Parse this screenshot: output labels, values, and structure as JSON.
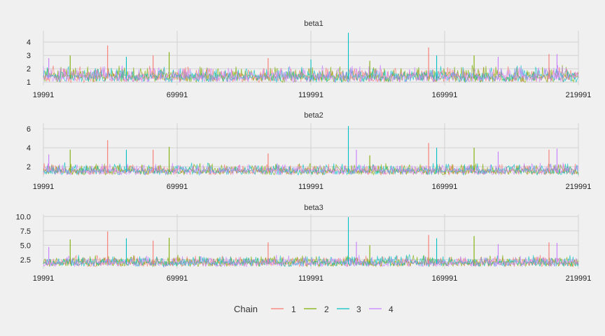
{
  "chart_data": {
    "type": "line",
    "x_range": [
      19991,
      219991
    ],
    "x_ticks": [
      19991,
      69991,
      119991,
      169991,
      219991
    ],
    "x_tick_labels": [
      "19991",
      "69991",
      "119991",
      "169991",
      "219991"
    ],
    "legend": {
      "title": "Chain",
      "placement": "bottom",
      "entries": [
        "1",
        "2",
        "3",
        "4"
      ]
    },
    "series_colors": {
      "1": "#f8766d",
      "2": "#7cae00",
      "3": "#00bfc4",
      "4": "#c77cff"
    },
    "grid": true,
    "panels": [
      {
        "title": "beta1",
        "ylim": [
          0.75,
          4.85
        ],
        "y_ticks": [
          1,
          2,
          3,
          4
        ],
        "y_tick_labels": [
          "1",
          "2",
          "3",
          "4"
        ],
        "baseline": 1.25,
        "peaks": [
          {
            "chain": "1",
            "x": 44000,
            "y": 3.75
          },
          {
            "chain": "2",
            "x": 30000,
            "y": 3.0
          },
          {
            "chain": "2",
            "x": 67000,
            "y": 3.25
          },
          {
            "chain": "1",
            "x": 61000,
            "y": 3.0
          },
          {
            "chain": "3",
            "x": 134000,
            "y": 4.7
          },
          {
            "chain": "1",
            "x": 164000,
            "y": 3.6
          },
          {
            "chain": "3",
            "x": 167000,
            "y": 3.0
          },
          {
            "chain": "2",
            "x": 181000,
            "y": 3.0
          },
          {
            "chain": "1",
            "x": 209000,
            "y": 3.1
          },
          {
            "chain": "4",
            "x": 212000,
            "y": 3.1
          },
          {
            "chain": "4",
            "x": 22000,
            "y": 2.8
          },
          {
            "chain": "3",
            "x": 51000,
            "y": 2.9
          },
          {
            "chain": "1",
            "x": 104000,
            "y": 2.8
          },
          {
            "chain": "2",
            "x": 142000,
            "y": 2.6
          },
          {
            "chain": "4",
            "x": 190000,
            "y": 2.9
          },
          {
            "chain": "3",
            "x": 120000,
            "y": 2.7
          }
        ]
      },
      {
        "title": "beta2",
        "ylim": [
          0.9,
          6.6
        ],
        "y_ticks": [
          2,
          4,
          6
        ],
        "y_tick_labels": [
          "2",
          "4",
          "6"
        ],
        "baseline": 1.4,
        "peaks": [
          {
            "chain": "1",
            "x": 44000,
            "y": 4.8
          },
          {
            "chain": "2",
            "x": 30000,
            "y": 3.8
          },
          {
            "chain": "2",
            "x": 67000,
            "y": 4.1
          },
          {
            "chain": "1",
            "x": 61000,
            "y": 3.8
          },
          {
            "chain": "3",
            "x": 134000,
            "y": 6.3
          },
          {
            "chain": "1",
            "x": 164000,
            "y": 4.5
          },
          {
            "chain": "3",
            "x": 167000,
            "y": 4.0
          },
          {
            "chain": "2",
            "x": 181000,
            "y": 4.0
          },
          {
            "chain": "1",
            "x": 209000,
            "y": 3.8
          },
          {
            "chain": "4",
            "x": 212000,
            "y": 3.9
          },
          {
            "chain": "4",
            "x": 22000,
            "y": 3.3
          },
          {
            "chain": "3",
            "x": 51000,
            "y": 3.8
          },
          {
            "chain": "1",
            "x": 104000,
            "y": 3.4
          },
          {
            "chain": "4",
            "x": 137000,
            "y": 3.8
          },
          {
            "chain": "2",
            "x": 142000,
            "y": 3.2
          },
          {
            "chain": "4",
            "x": 190000,
            "y": 3.6
          }
        ]
      },
      {
        "title": "beta3",
        "ylim": [
          0.9,
          10.4
        ],
        "y_ticks": [
          2.5,
          5.0,
          7.5,
          10.0
        ],
        "y_tick_labels": [
          "2.5",
          "5.0",
          "7.5",
          "10.0"
        ],
        "baseline": 1.7,
        "peaks": [
          {
            "chain": "1",
            "x": 44000,
            "y": 7.4
          },
          {
            "chain": "2",
            "x": 30000,
            "y": 6.0
          },
          {
            "chain": "2",
            "x": 67000,
            "y": 6.3
          },
          {
            "chain": "1",
            "x": 61000,
            "y": 5.8
          },
          {
            "chain": "3",
            "x": 134000,
            "y": 9.9
          },
          {
            "chain": "1",
            "x": 164000,
            "y": 6.8
          },
          {
            "chain": "3",
            "x": 167000,
            "y": 6.2
          },
          {
            "chain": "2",
            "x": 181000,
            "y": 6.6
          },
          {
            "chain": "1",
            "x": 209000,
            "y": 5.5
          },
          {
            "chain": "4",
            "x": 212000,
            "y": 5.4
          },
          {
            "chain": "4",
            "x": 22000,
            "y": 4.7
          },
          {
            "chain": "3",
            "x": 51000,
            "y": 6.2
          },
          {
            "chain": "1",
            "x": 104000,
            "y": 5.5
          },
          {
            "chain": "4",
            "x": 137000,
            "y": 5.6
          },
          {
            "chain": "2",
            "x": 142000,
            "y": 5.0
          },
          {
            "chain": "4",
            "x": 190000,
            "y": 5.2
          }
        ]
      }
    ]
  }
}
